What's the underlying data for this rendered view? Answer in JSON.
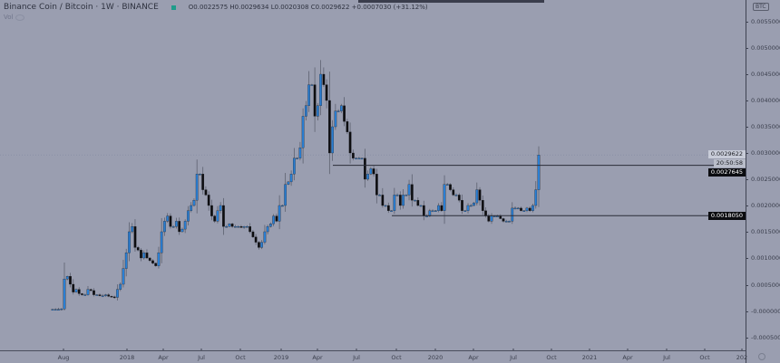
{
  "header": {
    "title": "Binance Coin / Bitcoin · 1W · BINANCE",
    "status_color": "#1f9c8a",
    "ohlc": "O0.0022575  H0.0029634  L0.0020308  C0.0029622  +0.0007030 (+31.12%)",
    "volume_label": "Vol"
  },
  "axis": {
    "currency_badge": "BTC",
    "settings_icon": "gear-icon"
  },
  "chart_data": {
    "type": "candlestick",
    "interval": "1W",
    "up_color": "#2a7fd4",
    "down_color": "#0d0d10",
    "y_ticks": [
      "0.0055000",
      "0.0050000",
      "0.0045000",
      "0.0040000",
      "0.0035000",
      "0.0030000",
      "0.0025000",
      "0.0020000",
      "0.0015000",
      "0.0010000",
      "0.0005000",
      "-0.0000000",
      "-0.0005000"
    ],
    "x_ticks": [
      "Aug",
      "2018",
      "Apr",
      "Jul",
      "Oct",
      "2019",
      "Apr",
      "Jul",
      "Oct",
      "2020",
      "Apr",
      "Jul",
      "Oct",
      "2021",
      "Apr",
      "Jul",
      "Oct",
      "202"
    ],
    "ylim": [
      -0.00065,
      0.0059
    ],
    "closes": [
      2e-05,
      2e-05,
      2e-05,
      3e-05,
      0.0006,
      0.00065,
      0.0005,
      0.00035,
      0.0004,
      0.00032,
      0.0003,
      0.0003,
      0.0004,
      0.00038,
      0.0003,
      0.0003,
      0.00028,
      0.00028,
      0.0003,
      0.00027,
      0.00026,
      0.00025,
      0.0004,
      0.0005,
      0.0008,
      0.0011,
      0.0015,
      0.0016,
      0.0012,
      0.00115,
      0.001,
      0.0011,
      0.001,
      0.00095,
      0.0009,
      0.00085,
      0.0011,
      0.0015,
      0.0017,
      0.0018,
      0.0016,
      0.0016,
      0.0017,
      0.0015,
      0.00155,
      0.0017,
      0.0019,
      0.002,
      0.0021,
      0.0026,
      0.0026,
      0.0023,
      0.0022,
      0.002,
      0.0018,
      0.0017,
      0.0019,
      0.002,
      0.0016,
      0.0016,
      0.00165,
      0.0016,
      0.0016,
      0.0016,
      0.00158,
      0.0016,
      0.0016,
      0.0015,
      0.0014,
      0.0013,
      0.0012,
      0.0013,
      0.0015,
      0.0016,
      0.00165,
      0.0018,
      0.0017,
      0.002,
      0.002,
      0.0024,
      0.00245,
      0.0026,
      0.0029,
      0.0029,
      0.0031,
      0.0037,
      0.0039,
      0.0043,
      0.0043,
      0.0037,
      0.0039,
      0.0045,
      0.0043,
      0.004,
      0.003,
      0.0035,
      0.0038,
      0.0038,
      0.0039,
      0.0036,
      0.0034,
      0.003,
      0.0029,
      0.0029,
      0.0029,
      0.0029,
      0.0025,
      0.0026,
      0.0027,
      0.0026,
      0.0022,
      0.0022,
      0.002,
      0.002,
      0.0019,
      0.0019,
      0.0022,
      0.0022,
      0.002,
      0.0022,
      0.0022,
      0.0024,
      0.0021,
      0.0021,
      0.002,
      0.002,
      0.0018,
      0.0018,
      0.0019,
      0.0019,
      0.0019,
      0.002,
      0.0019,
      0.0024,
      0.0024,
      0.0023,
      0.0022,
      0.0022,
      0.0021,
      0.0019,
      0.0019,
      0.002,
      0.002,
      0.00205,
      0.0023,
      0.0021,
      0.0019,
      0.0018,
      0.0017,
      0.0018,
      0.0018,
      0.0018,
      0.00175,
      0.0017,
      0.0017,
      0.0017,
      0.00195,
      0.00195,
      0.00195,
      0.0019,
      0.0019,
      0.00195,
      0.0019,
      0.002,
      0.0023,
      0.0029622
    ],
    "horizontal_levels": [
      {
        "value": 0.0027645,
        "label": "0.0027645"
      },
      {
        "value": 0.001805,
        "label": "0.0018050"
      }
    ],
    "last_price": {
      "value": 0.0029622,
      "label": "0.0029622",
      "countdown": "20:50:58"
    }
  }
}
